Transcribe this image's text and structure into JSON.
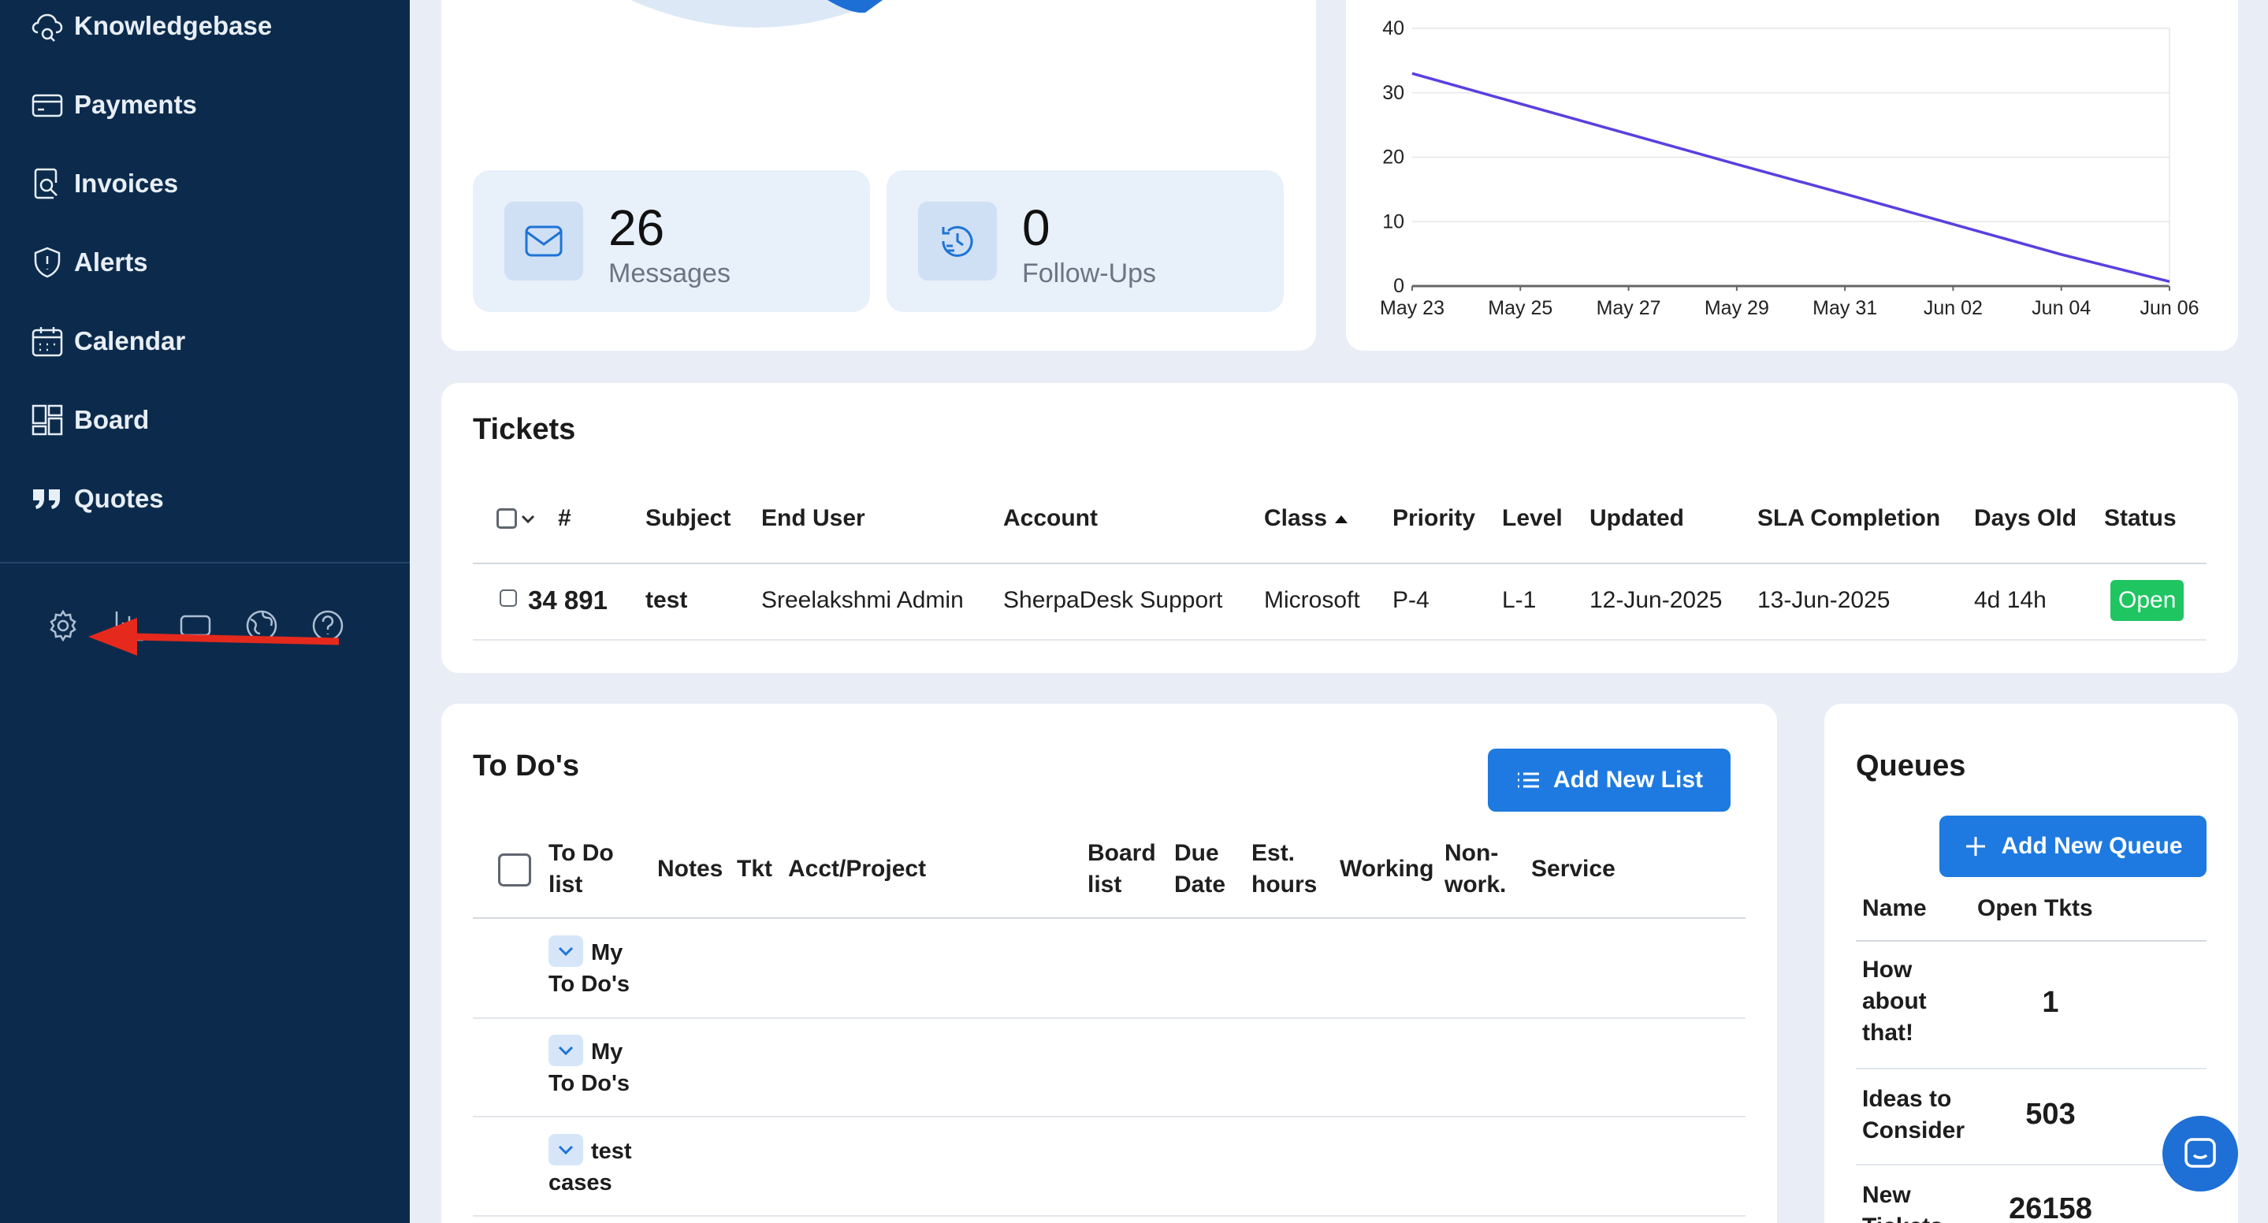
{
  "sidebar": {
    "items": [
      {
        "label": "Knowledgebase",
        "icon": "knowledgebase-icon"
      },
      {
        "label": "Payments",
        "icon": "credit-card-icon"
      },
      {
        "label": "Invoices",
        "icon": "invoice-search-icon"
      },
      {
        "label": "Alerts",
        "icon": "shield-alert-icon"
      },
      {
        "label": "Calendar",
        "icon": "calendar-icon"
      },
      {
        "label": "Board",
        "icon": "board-icon"
      },
      {
        "label": "Quotes",
        "icon": "quote-icon"
      }
    ],
    "tools": [
      "gear-icon",
      "chart-icon",
      "screen-icon",
      "globe-icon",
      "help-icon"
    ]
  },
  "stats": {
    "messages": {
      "value": "26",
      "label": "Messages"
    },
    "followups": {
      "value": "0",
      "label": "Follow-Ups"
    }
  },
  "chart_data": {
    "type": "line",
    "title": "",
    "x": [
      "May 23",
      "May 25",
      "May 27",
      "May 29",
      "May 31",
      "Jun 02",
      "Jun 04",
      "Jun 06"
    ],
    "series": [
      {
        "values": [
          33,
          28.3,
          23.6,
          18.9,
          14.3,
          9.6,
          4.9,
          0.7
        ]
      }
    ],
    "ylim": [
      0,
      40
    ],
    "yticks": [
      "40",
      "30",
      "20",
      "10",
      "0"
    ],
    "grid": true,
    "line_color": "#5b3fe0"
  },
  "tickets": {
    "title": "Tickets",
    "headers": {
      "num": "#",
      "subject": "Subject",
      "end_user": "End User",
      "account": "Account",
      "class": "Class",
      "priority": "Priority",
      "level": "Level",
      "updated": "Updated",
      "sla": "SLA Completion",
      "days_old": "Days Old",
      "status": "Status"
    },
    "rows": [
      {
        "num": "34 891",
        "subject": "test",
        "end_user": "Sreelakshmi Admin",
        "account": "SherpaDesk Support",
        "class": "Microsoft",
        "priority": "P-4",
        "level": "L-1",
        "updated": "12-Jun-2025",
        "sla": "13-Jun-2025",
        "days_old": "4d 14h",
        "status": "Open"
      }
    ]
  },
  "todos": {
    "title": "To Do's",
    "add_button": "Add New List",
    "headers": {
      "list_l1": "To Do",
      "list_l2": "list",
      "notes": "Notes",
      "tkt": "Tkt",
      "acct": "Acct/Project",
      "board_l1": "Board",
      "board_l2": "list",
      "due_l1": "Due",
      "due_l2": "Date",
      "est_l1": "Est.",
      "est_l2": "hours",
      "working": "Working",
      "nonwork_l1": "Non-",
      "nonwork_l2": "work.",
      "service": "Service"
    },
    "items": [
      {
        "l1": "My",
        "l2": "To Do's"
      },
      {
        "l1": "My",
        "l2": "To Do's"
      },
      {
        "l1": "test",
        "l2": "cases"
      }
    ]
  },
  "queues": {
    "title": "Queues",
    "add_button": "Add New Queue",
    "headers": {
      "name": "Name",
      "open": "Open Tkts"
    },
    "rows": [
      {
        "l1": "How",
        "l2": "about",
        "l3": "that!",
        "count": "1"
      },
      {
        "l1": "Ideas to",
        "l2": "Consider",
        "count": "503"
      },
      {
        "l1": "New",
        "l2": "Tickets",
        "count": "26158"
      }
    ]
  }
}
